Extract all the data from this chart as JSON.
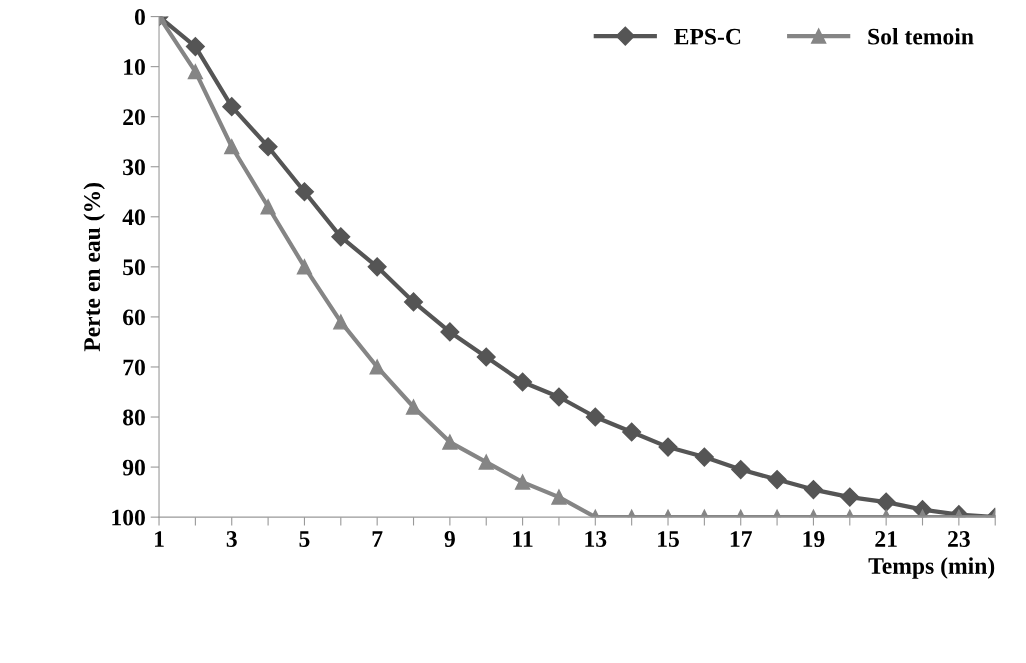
{
  "chart_data": {
    "type": "line",
    "xlabel": "Temps (min)",
    "ylabel": "Perte en eau (%)",
    "x": [
      1,
      2,
      3,
      4,
      5,
      6,
      7,
      8,
      9,
      10,
      11,
      12,
      13,
      14,
      15,
      16,
      17,
      18,
      19,
      20,
      21,
      22,
      23,
      24
    ],
    "series": [
      {
        "name": "EPS-C",
        "color": "#555555",
        "marker": "diamond",
        "values": [
          0,
          6,
          18,
          26,
          35,
          44,
          50,
          57,
          63,
          68,
          73,
          76,
          80,
          83,
          86,
          88,
          90.5,
          92.5,
          94.5,
          96,
          97,
          98.5,
          99.5,
          100
        ]
      },
      {
        "name": "Sol temoin",
        "color": "#858585",
        "marker": "triangle",
        "values": [
          0,
          11,
          26,
          38,
          50,
          61,
          70,
          78,
          85,
          89,
          93,
          96,
          100,
          100,
          100,
          100,
          100,
          100,
          100,
          100,
          100,
          100,
          100,
          100
        ]
      }
    ],
    "xlim": [
      1,
      24
    ],
    "xticks": [
      1,
      {
        "value": 2,
        "label": null
      },
      3,
      {
        "value": 4,
        "label": null
      },
      5,
      {
        "value": 6,
        "label": null
      },
      7,
      {
        "value": 8,
        "label": null
      },
      9,
      {
        "value": 10,
        "label": null
      },
      11,
      {
        "value": 12,
        "label": null
      },
      13,
      {
        "value": 14,
        "label": null
      },
      15,
      {
        "value": 16,
        "label": null
      },
      17,
      {
        "value": 18,
        "label": null
      },
      19,
      {
        "value": 20,
        "label": null
      },
      21,
      {
        "value": 22,
        "label": null
      },
      23,
      {
        "value": 24,
        "label": null
      }
    ],
    "ylim": [
      100,
      0
    ],
    "yticks": [
      0,
      10,
      20,
      30,
      40,
      50,
      60,
      70,
      80,
      90,
      100
    ],
    "grid": false,
    "legend": "top right",
    "line_style": "solid"
  }
}
